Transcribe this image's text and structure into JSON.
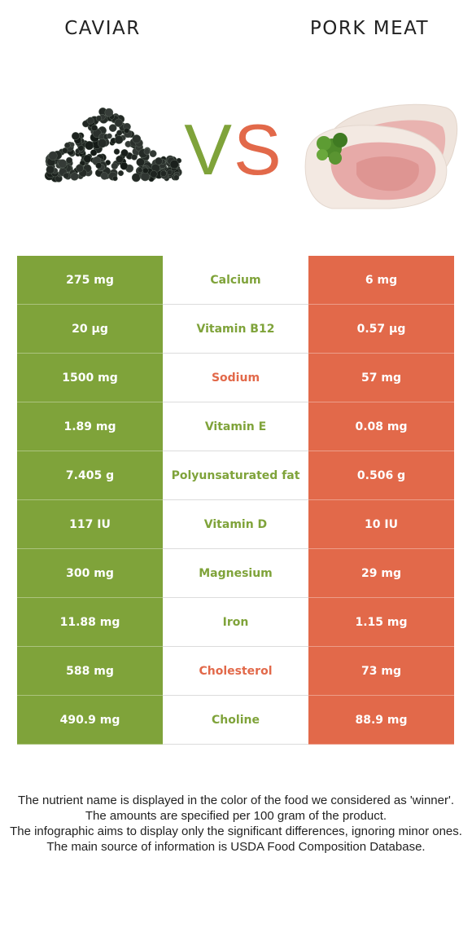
{
  "colors": {
    "green": "#7fa33a",
    "red": "#e2694a"
  },
  "header": {
    "left_food": "CAVIAR",
    "right_food": "PORK MEAT",
    "vs_v": "V",
    "vs_s": "S"
  },
  "images": {
    "left": "caviar-pile-image",
    "right": "pork-meat-slices-image"
  },
  "rows": [
    {
      "left": "275 mg",
      "nutrient": "Calcium",
      "right": "6 mg",
      "winner": "left"
    },
    {
      "left": "20 µg",
      "nutrient": "Vitamin B12",
      "right": "0.57 µg",
      "winner": "left"
    },
    {
      "left": "1500 mg",
      "nutrient": "Sodium",
      "right": "57 mg",
      "winner": "right"
    },
    {
      "left": "1.89 mg",
      "nutrient": "Vitamin E",
      "right": "0.08 mg",
      "winner": "left"
    },
    {
      "left": "7.405 g",
      "nutrient": "Polyunsaturated fat",
      "right": "0.506 g",
      "winner": "left"
    },
    {
      "left": "117 IU",
      "nutrient": "Vitamin D",
      "right": "10 IU",
      "winner": "left"
    },
    {
      "left": "300 mg",
      "nutrient": "Magnesium",
      "right": "29 mg",
      "winner": "left"
    },
    {
      "left": "11.88 mg",
      "nutrient": "Iron",
      "right": "1.15 mg",
      "winner": "left"
    },
    {
      "left": "588 mg",
      "nutrient": "Cholesterol",
      "right": "73 mg",
      "winner": "right"
    },
    {
      "left": "490.9 mg",
      "nutrient": "Choline",
      "right": "88.9 mg",
      "winner": "left"
    }
  ],
  "footer": {
    "line1": "The nutrient name is displayed in the color of the food we considered as 'winner'.",
    "line2": "The amounts are specified per 100 gram of the product.",
    "line3": "The infographic aims to display only the significant differences, ignoring minor ones.",
    "line4": "The main source of information is USDA Food Composition Database."
  }
}
